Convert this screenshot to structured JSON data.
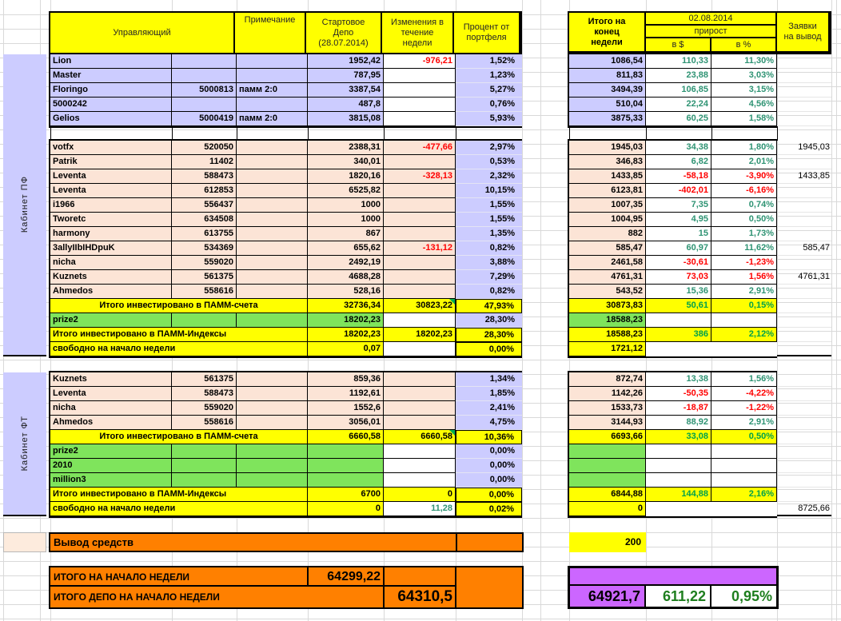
{
  "palette": {
    "yellow": "#FFFF00",
    "lavender": "#CCCCFF",
    "peach": "#FCE4D6",
    "green": "#7FE45C",
    "orange": "#FF8000",
    "purple": "#CC66FF",
    "red": "#FF0000",
    "green_on_white": "#2E9373",
    "green_on_yellow": "#00A14B",
    "green_dark": "#1E7E1E",
    "header_text": "#262626",
    "grid": "#D9D9D9"
  },
  "headers": {
    "manager": "Управляющий",
    "note": "Примечание",
    "start_depo": "Стартовое\nДепо\n(28.07.2014)",
    "changes": "Изменения в\nтечение\nнедели",
    "percent": "Процент от\nпортфеля",
    "total": "Итого на\nконец\nнедели",
    "date": "02.08.2014",
    "growth": "прирост",
    "in_usd": "в $",
    "in_pct": "в %",
    "withdraw": "Заявки\nна вывод"
  },
  "sidebars": [
    {
      "label": "Кабинет ПФ"
    },
    {
      "label": "Кабинет ФТ"
    }
  ],
  "groups": [
    {
      "id": "pf-top",
      "rows": [
        {
          "n": "Lion",
          "d": "1952,42",
          "c": "-976,21",
          "cc": "r",
          "p": "1,52%",
          "T": "1086,54",
          "u": "110,33",
          "uc": "g",
          "g": "11,30%",
          "gc": "g"
        },
        {
          "n": "Master",
          "d": "787,95",
          "p": "1,23%",
          "T": "811,83",
          "u": "23,88",
          "uc": "g",
          "g": "3,03%",
          "gc": "g"
        },
        {
          "n": "Floringo",
          "a": "5000813",
          "t": "памм 2:0",
          "d": "3387,54",
          "p": "5,27%",
          "T": "3494,39",
          "u": "106,85",
          "uc": "g",
          "g": "3,15%",
          "gc": "g"
        },
        {
          "n": "5000242",
          "d": "487,8",
          "p": "0,76%",
          "T": "510,04",
          "u": "22,24",
          "uc": "g",
          "g": "4,56%",
          "gc": "g"
        },
        {
          "n": "Gelios",
          "a": "5000419",
          "t": "памм 2:0",
          "d": "3815,08",
          "p": "5,93%",
          "T": "3875,33",
          "u": "60,25",
          "uc": "g",
          "g": "1,58%",
          "gc": "g"
        }
      ]
    },
    {
      "id": "pf-main",
      "rows": [
        {
          "n": "votfx",
          "a": "520050",
          "d": "2388,31",
          "c": "-477,66",
          "cc": "r",
          "p": "2,97%",
          "T": "1945,03",
          "u": "34,38",
          "uc": "g",
          "g": "1,80%",
          "gc": "g",
          "w": "1945,03"
        },
        {
          "n": "Patrik",
          "a": "11402",
          "d": "340,01",
          "p": "0,53%",
          "T": "346,83",
          "u": "6,82",
          "uc": "g",
          "g": "2,01%",
          "gc": "g"
        },
        {
          "n": "Leventa",
          "a": "588473",
          "d": "1820,16",
          "c": "-328,13",
          "cc": "r",
          "p": "2,32%",
          "T": "1433,85",
          "u": "-58,18",
          "uc": "r",
          "g": "-3,90%",
          "gc": "r",
          "w": "1433,85"
        },
        {
          "n": "Leventa",
          "a": "612853",
          "d": "6525,82",
          "p": "10,15%",
          "T": "6123,81",
          "u": "-402,01",
          "uc": "r",
          "g": "-6,16%",
          "gc": "r"
        },
        {
          "n": "i1966",
          "a": "556437",
          "d": "1000",
          "p": "1,55%",
          "T": "1007,35",
          "u": "7,35",
          "uc": "g",
          "g": "0,74%",
          "gc": "g"
        },
        {
          "n": "Tworetc",
          "a": "634508",
          "d": "1000",
          "p": "1,55%",
          "T": "1004,95",
          "u": "4,95",
          "uc": "g",
          "g": "0,50%",
          "gc": "g"
        },
        {
          "n": "harmony",
          "a": "613755",
          "d": "867",
          "p": "1,35%",
          "T": "882",
          "u": "15",
          "uc": "g",
          "g": "1,73%",
          "gc": "g"
        },
        {
          "n": "3allyIIbIHDpuK",
          "a": "534369",
          "d": "655,62",
          "c": "-131,12",
          "cc": "r",
          "p": "0,82%",
          "T": "585,47",
          "u": "60,97",
          "uc": "g",
          "g": "11,62%",
          "gc": "g",
          "w": "585,47"
        },
        {
          "n": "nicha",
          "a": "559020",
          "d": "2492,19",
          "p": "3,88%",
          "T": "2461,58",
          "u": "-30,61",
          "uc": "r",
          "g": "-1,23%",
          "gc": "r"
        },
        {
          "n": "Kuznets",
          "a": "561375",
          "d": "4688,28",
          "p": "7,29%",
          "T": "4761,31",
          "u": "73,03",
          "uc": "r",
          "g": "1,56%",
          "gc": "r",
          "w": "4761,31"
        },
        {
          "n": "Ahmedos",
          "a": "558616",
          "d": "528,16",
          "p": "0,82%",
          "T": "543,52",
          "u": "15,36",
          "uc": "g",
          "g": "2,91%",
          "gc": "g"
        },
        {
          "k": "t",
          "n": "Итого инвестировано в ПАММ-счета",
          "d": "32736,34",
          "c": "30823,22",
          "tri": true,
          "p": "47,93%",
          "T": "30873,83",
          "u": "50,61",
          "uc": "gy",
          "g": "0,15%",
          "gc": "gy"
        },
        {
          "k": "g",
          "n": "prize2",
          "d": "18202,23",
          "p": "28,30%",
          "T": "18588,23"
        },
        {
          "k": "i",
          "n": "Итого инвестировано в ПАММ-Индексы",
          "d": "18202,23",
          "c": "18202,23",
          "p": "28,30%",
          "T": "18588,23",
          "u": "386",
          "uc": "gy",
          "g": "2,12%",
          "gc": "gy"
        },
        {
          "k": "f",
          "n": "свободно на начало недели",
          "d": "0,07",
          "p": "0,00%",
          "T": "1721,12"
        }
      ]
    },
    {
      "id": "ft",
      "rows": [
        {
          "n": "Kuznets",
          "a": "561375",
          "d": "859,36",
          "p": "1,34%",
          "T": "872,74",
          "u": "13,38",
          "uc": "g",
          "g": "1,56%",
          "gc": "g"
        },
        {
          "n": "Leventa",
          "a": "588473",
          "d": "1192,61",
          "p": "1,85%",
          "T": "1142,26",
          "u": "-50,35",
          "uc": "r",
          "g": "-4,22%",
          "gc": "r"
        },
        {
          "n": "nicha",
          "a": "559020",
          "d": "1552,6",
          "p": "2,41%",
          "T": "1533,73",
          "u": "-18,87",
          "uc": "r",
          "g": "-1,22%",
          "gc": "r"
        },
        {
          "n": "Ahmedos",
          "a": "558616",
          "d": "3056,01",
          "p": "4,75%",
          "T": "3144,93",
          "u": "88,92",
          "uc": "g",
          "g": "2,91%",
          "gc": "g"
        },
        {
          "k": "t",
          "n": "Итого инвестировано в ПАММ-счета",
          "d": "6660,58",
          "c": "6660,58",
          "tri": true,
          "p": "10,36%",
          "T": "6693,66",
          "u": "33,08",
          "uc": "gy",
          "g": "0,50%",
          "gc": "gy"
        },
        {
          "k": "g",
          "n": "prize2",
          "p": "0,00%"
        },
        {
          "k": "g",
          "n": "2010",
          "p": "0,00%"
        },
        {
          "k": "g",
          "n": "million3",
          "p": "0,00%"
        },
        {
          "k": "i",
          "n": "Итого инвестировано в ПАММ-Индексы",
          "d": "6700",
          "c": "0",
          "p": "0,00%",
          "T": "6844,88",
          "u": "144,88",
          "uc": "gy",
          "g": "2,16%",
          "gc": "gy"
        },
        {
          "k": "f",
          "n": "свободно на начало недели",
          "d": "0",
          "c": "11,28",
          "cc": "g",
          "p": "0,02%",
          "T": "0",
          "w": "8725,66"
        }
      ]
    }
  ],
  "footer": {
    "withdraw_label": "Вывод средств",
    "withdraw_value": "200",
    "week_total_label": "ИТОГО НА НАЧАЛО НЕДЕЛИ",
    "week_total_value": "64299,22",
    "depo_total_label": "ИТОГО ДЕПО НА НАЧАЛО НЕДЕЛИ",
    "depo_total_value": "64310,5",
    "end_total": "64921,7",
    "end_gain_usd": "611,22",
    "end_gain_pct": "0,95%"
  }
}
